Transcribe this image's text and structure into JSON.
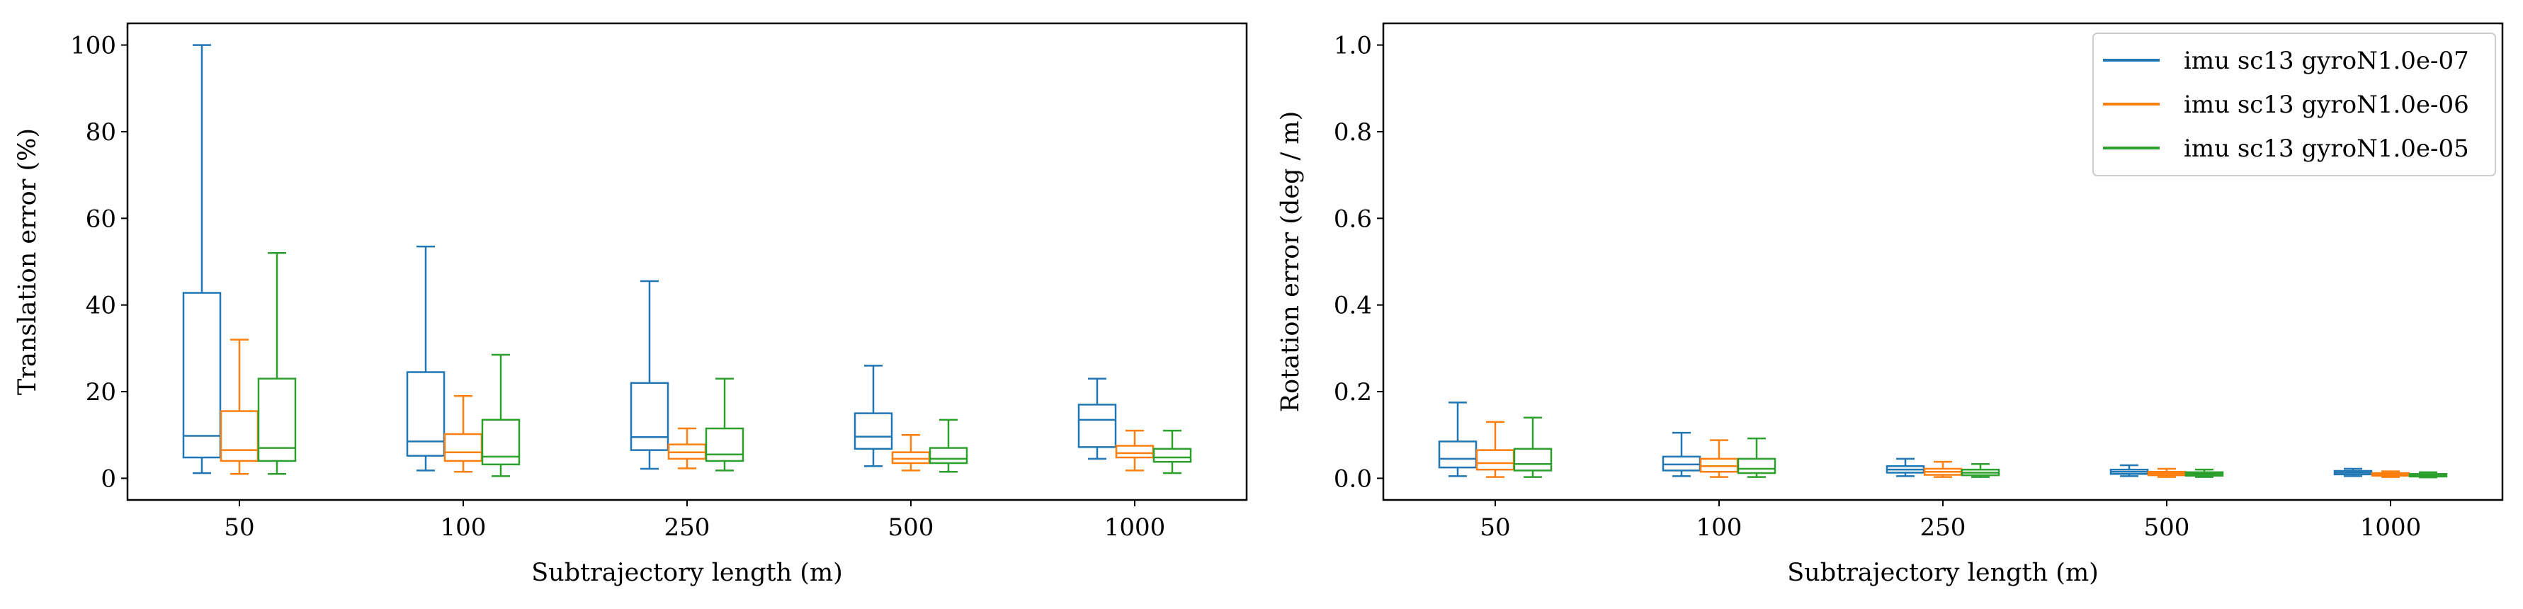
{
  "chart_data": [
    {
      "type": "box",
      "xlabel": "Subtrajectory length (m)",
      "ylabel": "Translation error (%)",
      "ylim": [
        -5,
        105
      ],
      "yticks": [
        0,
        20,
        40,
        60,
        80,
        100
      ],
      "categories": [
        "50",
        "100",
        "250",
        "500",
        "1000"
      ],
      "series": [
        {
          "color": "#1f77b4",
          "boxes": [
            {
              "whislo": 1.2,
              "q1": 4.8,
              "med": 9.8,
              "q3": 42.8,
              "whishi": 100
            },
            {
              "whislo": 1.8,
              "q1": 5.2,
              "med": 8.5,
              "q3": 24.5,
              "whishi": 53.5
            },
            {
              "whislo": 2.2,
              "q1": 6.5,
              "med": 9.5,
              "q3": 22.0,
              "whishi": 45.5
            },
            {
              "whislo": 2.8,
              "q1": 6.8,
              "med": 9.6,
              "q3": 15.0,
              "whishi": 26.0
            },
            {
              "whislo": 4.5,
              "q1": 7.2,
              "med": 13.5,
              "q3": 17.0,
              "whishi": 23.0
            }
          ]
        },
        {
          "color": "#ff7f0e",
          "boxes": [
            {
              "whislo": 1.0,
              "q1": 4.0,
              "med": 6.5,
              "q3": 15.5,
              "whishi": 32.0
            },
            {
              "whislo": 1.5,
              "q1": 4.0,
              "med": 6.0,
              "q3": 10.2,
              "whishi": 19.0
            },
            {
              "whislo": 2.3,
              "q1": 4.5,
              "med": 6.0,
              "q3": 7.8,
              "whishi": 11.5
            },
            {
              "whislo": 1.8,
              "q1": 3.5,
              "med": 4.5,
              "q3": 6.0,
              "whishi": 10.0
            },
            {
              "whislo": 1.8,
              "q1": 4.8,
              "med": 5.8,
              "q3": 7.5,
              "whishi": 11.0
            }
          ]
        },
        {
          "color": "#2ca02c",
          "boxes": [
            {
              "whislo": 1.0,
              "q1": 4.0,
              "med": 7.0,
              "q3": 23.0,
              "whishi": 52.0
            },
            {
              "whislo": 0.5,
              "q1": 3.2,
              "med": 5.0,
              "q3": 13.5,
              "whishi": 28.5
            },
            {
              "whislo": 1.8,
              "q1": 4.0,
              "med": 5.5,
              "q3": 11.5,
              "whishi": 23.0
            },
            {
              "whislo": 1.5,
              "q1": 3.5,
              "med": 4.5,
              "q3": 7.0,
              "whishi": 13.5
            },
            {
              "whislo": 1.2,
              "q1": 3.8,
              "med": 4.8,
              "q3": 6.8,
              "whishi": 11.0
            }
          ]
        }
      ]
    },
    {
      "type": "box",
      "xlabel": "Subtrajectory length (m)",
      "ylabel": "Rotation error (deg / m)",
      "ylim": [
        -0.05,
        1.05
      ],
      "yticks": [
        0.0,
        0.2,
        0.4,
        0.6,
        0.8,
        1.0
      ],
      "categories": [
        "50",
        "100",
        "250",
        "500",
        "1000"
      ],
      "legend": {
        "position": "top-right"
      },
      "series": [
        {
          "name": "imu sc13 gyroN1.0e-07",
          "color": "#1f77b4",
          "boxes": [
            {
              "whislo": 0.005,
              "q1": 0.025,
              "med": 0.045,
              "q3": 0.085,
              "whishi": 0.175
            },
            {
              "whislo": 0.005,
              "q1": 0.018,
              "med": 0.032,
              "q3": 0.05,
              "whishi": 0.105
            },
            {
              "whislo": 0.005,
              "q1": 0.013,
              "med": 0.02,
              "q3": 0.028,
              "whishi": 0.045
            },
            {
              "whislo": 0.005,
              "q1": 0.01,
              "med": 0.015,
              "q3": 0.02,
              "whishi": 0.03
            },
            {
              "whislo": 0.005,
              "q1": 0.009,
              "med": 0.013,
              "q3": 0.017,
              "whishi": 0.022
            }
          ]
        },
        {
          "name": "imu sc13 gyroN1.0e-06",
          "color": "#ff7f0e",
          "boxes": [
            {
              "whislo": 0.003,
              "q1": 0.02,
              "med": 0.035,
              "q3": 0.065,
              "whishi": 0.13
            },
            {
              "whislo": 0.003,
              "q1": 0.015,
              "med": 0.028,
              "q3": 0.045,
              "whishi": 0.088
            },
            {
              "whislo": 0.003,
              "q1": 0.008,
              "med": 0.015,
              "q3": 0.022,
              "whishi": 0.038
            },
            {
              "whislo": 0.003,
              "q1": 0.007,
              "med": 0.011,
              "q3": 0.015,
              "whishi": 0.022
            },
            {
              "whislo": 0.003,
              "q1": 0.006,
              "med": 0.009,
              "q3": 0.012,
              "whishi": 0.016
            }
          ]
        },
        {
          "name": "imu sc13 gyroN1.0e-05",
          "color": "#2ca02c",
          "boxes": [
            {
              "whislo": 0.003,
              "q1": 0.018,
              "med": 0.033,
              "q3": 0.068,
              "whishi": 0.14
            },
            {
              "whislo": 0.003,
              "q1": 0.012,
              "med": 0.022,
              "q3": 0.045,
              "whishi": 0.092
            },
            {
              "whislo": 0.003,
              "q1": 0.007,
              "med": 0.013,
              "q3": 0.02,
              "whishi": 0.033
            },
            {
              "whislo": 0.003,
              "q1": 0.006,
              "med": 0.01,
              "q3": 0.014,
              "whishi": 0.02
            },
            {
              "whislo": 0.002,
              "q1": 0.004,
              "med": 0.007,
              "q3": 0.01,
              "whishi": 0.014
            }
          ]
        }
      ]
    }
  ]
}
